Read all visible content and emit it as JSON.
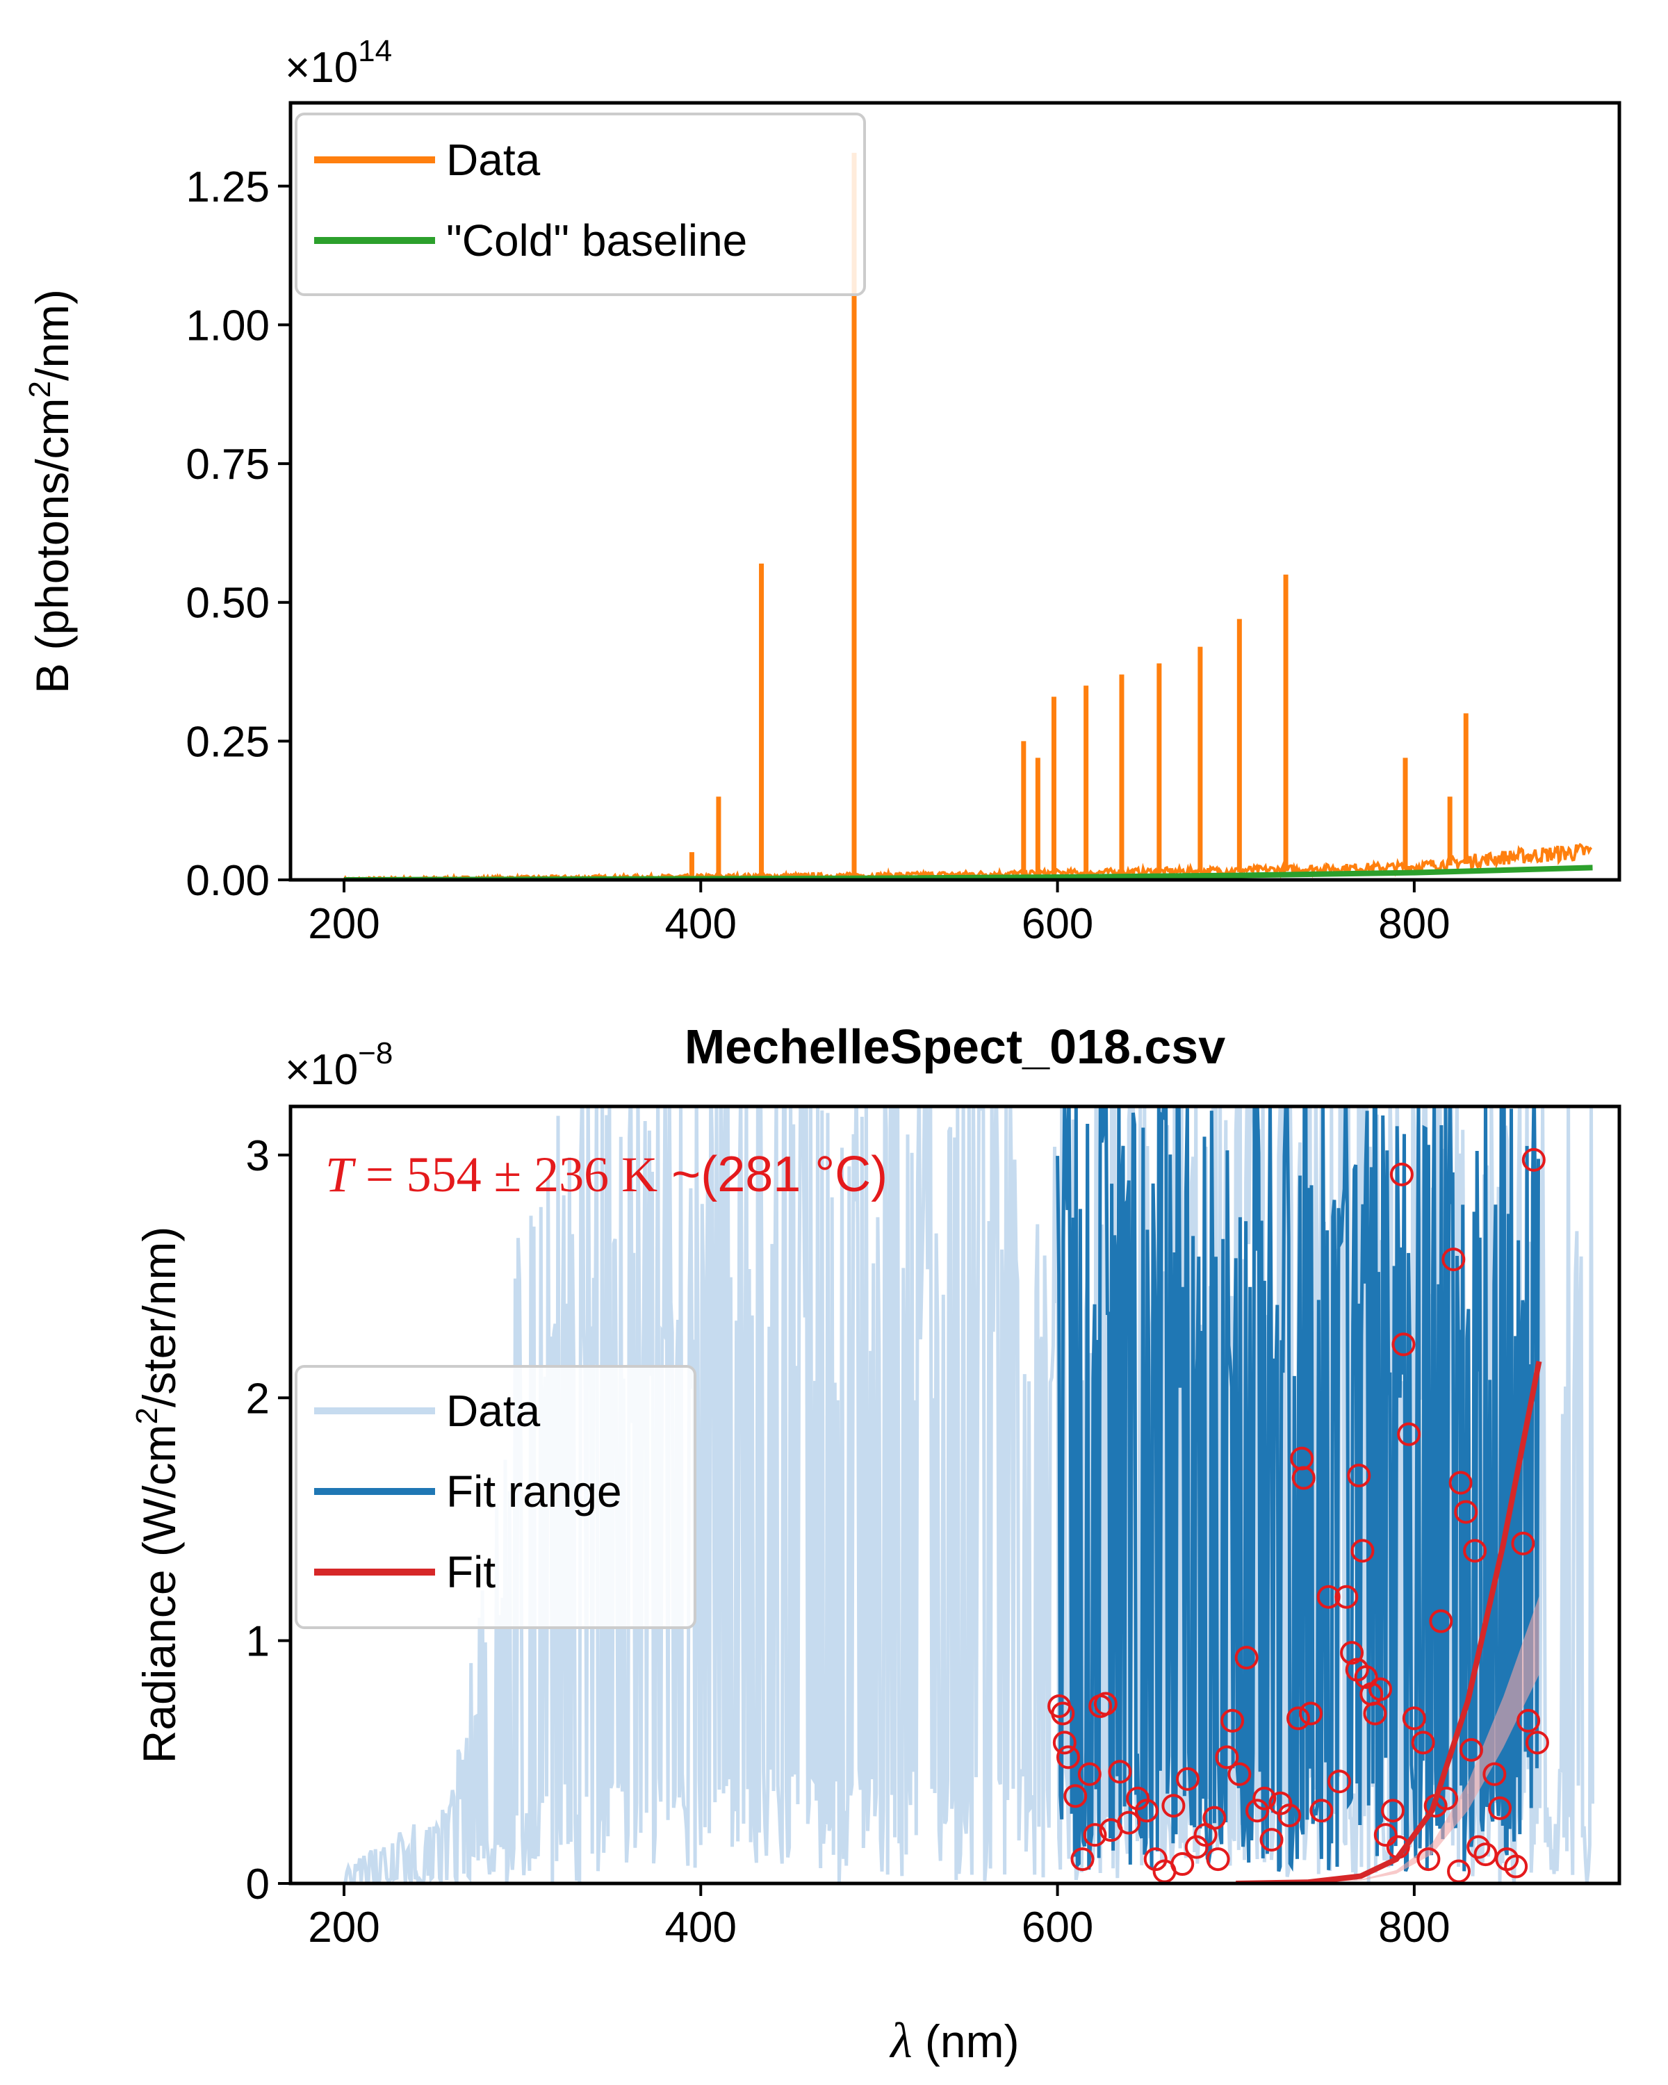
{
  "chart_data": [
    {
      "type": "line",
      "ylabel_base": "B (photons/cm",
      "ylabel_sup": "2",
      "ylabel_tail": "/nm)",
      "multiplier_base": "×10",
      "multiplier_exp": "14",
      "xlim": [
        170,
        915
      ],
      "ylim": [
        0,
        1.4
      ],
      "xticks": [
        200,
        400,
        600,
        800
      ],
      "xtick_labels": [
        "200",
        "400",
        "600",
        "800"
      ],
      "yticks": [
        0,
        0.25,
        0.5,
        0.75,
        1.0,
        1.25
      ],
      "ytick_labels": [
        "0.00",
        "0.25",
        "0.50",
        "0.75",
        "1.00",
        "1.25"
      ],
      "legend_position": "top-left",
      "series": [
        {
          "name": "Data",
          "color": "#ff7f0e",
          "baseline_x": [
            200,
            300,
            400,
            500,
            600,
            700,
            800,
            850,
            900
          ],
          "baseline_y": [
            0.0,
            0.002,
            0.004,
            0.006,
            0.01,
            0.014,
            0.02,
            0.035,
            0.045
          ],
          "peaks_x": [
            395,
            410,
            434,
            486,
            581,
            589,
            598,
            616,
            636,
            657,
            680,
            702,
            728,
            795,
            820,
            829
          ],
          "peaks_y": [
            0.05,
            0.15,
            0.57,
            1.31,
            0.25,
            0.22,
            0.33,
            0.35,
            0.37,
            0.39,
            0.42,
            0.47,
            0.55,
            0.22,
            0.15,
            0.3
          ]
        },
        {
          "name": "\"Cold\" baseline",
          "color": "#2ca02c",
          "x": [
            200,
            300,
            400,
            500,
            600,
            700,
            800,
            900
          ],
          "y": [
            0.0,
            0.001,
            0.002,
            0.003,
            0.005,
            0.008,
            0.013,
            0.022
          ]
        }
      ]
    },
    {
      "type": "line",
      "title": "MechelleSpect_018.csv",
      "ylabel_base": "Radiance (W/cm",
      "ylabel_sup": "2",
      "ylabel_tail": "/ster/nm)",
      "xlabel_sym": "λ",
      "xlabel_tail": " (nm)",
      "multiplier_base": "×10",
      "multiplier_exp": "−8",
      "xlim": [
        170,
        915
      ],
      "ylim": [
        0,
        3.2
      ],
      "xticks": [
        200,
        400,
        600,
        800
      ],
      "xtick_labels": [
        "200",
        "400",
        "600",
        "800"
      ],
      "yticks": [
        0,
        1,
        2,
        3
      ],
      "ytick_labels": [
        "0",
        "1",
        "2",
        "3"
      ],
      "annotation_T": "T",
      "annotation_eq": " = 554 ± 236 K",
      "annotation_tail": " ~(281 °C)",
      "legend_position": "center-left",
      "series": [
        {
          "name": "Data",
          "color": "#c6dbef",
          "x_range": [
            200,
            900
          ]
        },
        {
          "name": "Fit range",
          "color": "#1f77b4",
          "x_range": [
            600,
            870
          ]
        },
        {
          "name": "Fit",
          "color": "#d62728",
          "x": [
            700,
            740,
            770,
            790,
            810,
            830,
            850,
            870
          ],
          "y": [
            0.0,
            0.005,
            0.03,
            0.1,
            0.3,
            0.75,
            1.4,
            2.15
          ]
        }
      ],
      "scatter_color": "#e41a1c",
      "scatter_points": [
        [
          601,
          0.73
        ],
        [
          603,
          0.7
        ],
        [
          604,
          0.58
        ],
        [
          606,
          0.52
        ],
        [
          610,
          0.36
        ],
        [
          614,
          0.1
        ],
        [
          618,
          0.45
        ],
        [
          621,
          0.2
        ],
        [
          624,
          0.73
        ],
        [
          627,
          0.74
        ],
        [
          630,
          0.22
        ],
        [
          635,
          0.46
        ],
        [
          640,
          0.25
        ],
        [
          645,
          0.35
        ],
        [
          650,
          0.3
        ],
        [
          655,
          0.1
        ],
        [
          660,
          0.05
        ],
        [
          665,
          0.32
        ],
        [
          670,
          0.08
        ],
        [
          673,
          0.43
        ],
        [
          678,
          0.15
        ],
        [
          683,
          0.2
        ],
        [
          688,
          0.27
        ],
        [
          690,
          0.1
        ],
        [
          695,
          0.52
        ],
        [
          698,
          0.67
        ],
        [
          702,
          0.45
        ],
        [
          706,
          0.93
        ],
        [
          712,
          0.3
        ],
        [
          716,
          0.35
        ],
        [
          720,
          0.18
        ],
        [
          725,
          0.33
        ],
        [
          730,
          0.28
        ],
        [
          735,
          0.68
        ],
        [
          737,
          1.75
        ],
        [
          738,
          1.67
        ],
        [
          742,
          0.7
        ],
        [
          748,
          0.3
        ],
        [
          752,
          1.18
        ],
        [
          758,
          0.42
        ],
        [
          762,
          1.18
        ],
        [
          765,
          0.95
        ],
        [
          768,
          0.88
        ],
        [
          769,
          1.68
        ],
        [
          771,
          1.37
        ],
        [
          773,
          0.85
        ],
        [
          776,
          0.78
        ],
        [
          778,
          0.7
        ],
        [
          781,
          0.8
        ],
        [
          784,
          0.2
        ],
        [
          788,
          0.3
        ],
        [
          791,
          0.15
        ],
        [
          793,
          2.92
        ],
        [
          794,
          2.22
        ],
        [
          797,
          1.85
        ],
        [
          800,
          0.68
        ],
        [
          805,
          0.58
        ],
        [
          808,
          0.1
        ],
        [
          812,
          0.32
        ],
        [
          815,
          1.08
        ],
        [
          818,
          0.35
        ],
        [
          822,
          2.57
        ],
        [
          825,
          0.05
        ],
        [
          826,
          1.65
        ],
        [
          829,
          1.53
        ],
        [
          832,
          0.55
        ],
        [
          834,
          1.37
        ],
        [
          836,
          0.15
        ],
        [
          840,
          0.12
        ],
        [
          845,
          0.45
        ],
        [
          848,
          0.31
        ],
        [
          852,
          0.1
        ],
        [
          857,
          0.07
        ],
        [
          861,
          1.4
        ],
        [
          864,
          0.67
        ],
        [
          867,
          2.98
        ],
        [
          869,
          0.58
        ]
      ]
    }
  ]
}
